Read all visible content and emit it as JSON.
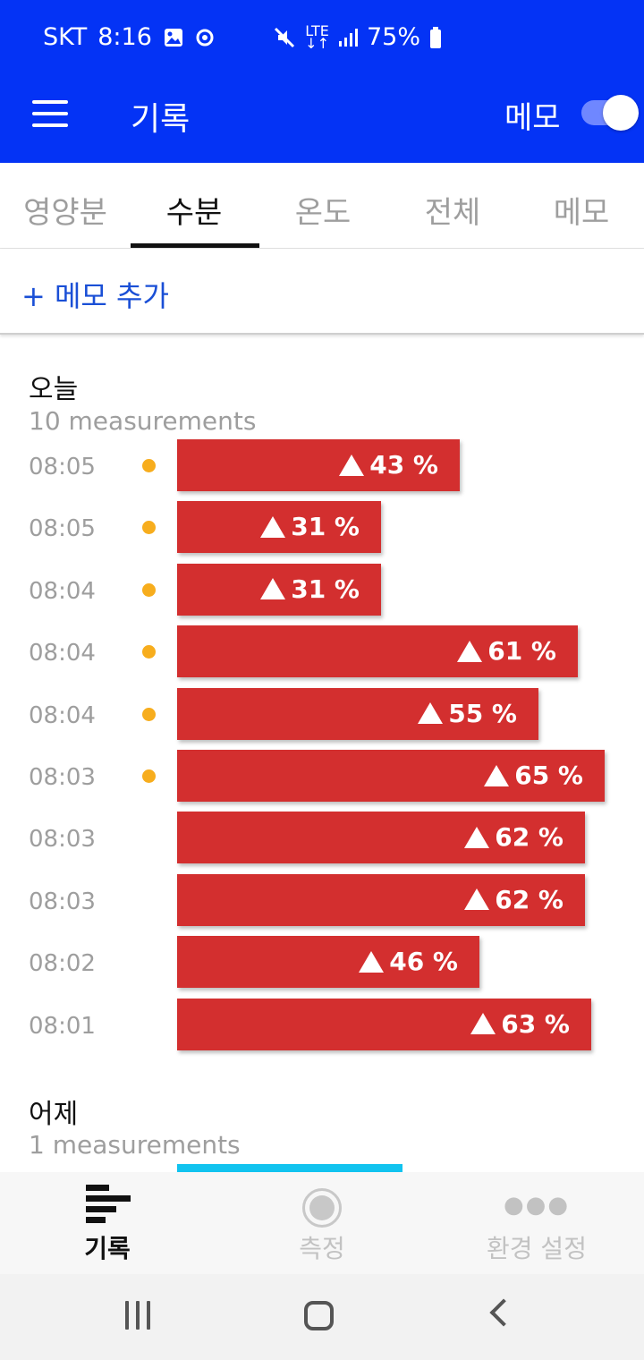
{
  "status_bar": {
    "carrier": "SKT",
    "time": "8:16",
    "icons": [
      "gallery-icon",
      "assistant-icon",
      "mute-icon",
      "lte-icon",
      "signal-icon",
      "battery-icon"
    ],
    "network": "LTE",
    "battery": "75%"
  },
  "app_bar": {
    "title": "기록",
    "memo_label": "메모",
    "memo_toggle_on": true
  },
  "tabs": [
    {
      "label": "영양분",
      "active": false
    },
    {
      "label": "수분",
      "active": true
    },
    {
      "label": "온도",
      "active": false
    },
    {
      "label": "전체",
      "active": false
    },
    {
      "label": "메모",
      "active": false
    }
  ],
  "add_memo_label": "+ 메모 추가",
  "sections": [
    {
      "header": "오늘",
      "count": "10 measurements",
      "measurements": [
        {
          "time": "08:05",
          "value": 43,
          "label": "43 %",
          "dot": true
        },
        {
          "time": "08:05",
          "value": 31,
          "label": "31 %",
          "dot": true
        },
        {
          "time": "08:04",
          "value": 31,
          "label": "31 %",
          "dot": true
        },
        {
          "time": "08:04",
          "value": 61,
          "label": "61 %",
          "dot": true
        },
        {
          "time": "08:04",
          "value": 55,
          "label": "55 %",
          "dot": true
        },
        {
          "time": "08:03",
          "value": 65,
          "label": "65 %",
          "dot": true
        },
        {
          "time": "08:03",
          "value": 62,
          "label": "62 %",
          "dot": false
        },
        {
          "time": "08:03",
          "value": 62,
          "label": "62 %",
          "dot": false
        },
        {
          "time": "08:02",
          "value": 46,
          "label": "46 %",
          "dot": false
        },
        {
          "time": "08:01",
          "value": 63,
          "label": "63 %",
          "dot": false
        }
      ]
    },
    {
      "header": "어제",
      "count": "1 measurements"
    }
  ],
  "colors": {
    "brand_blue": "#0433f5",
    "bar_red": "#d32f2f",
    "dot_orange": "#f7ad1d",
    "bar_cyan": "#11c3ef"
  },
  "bottom_nav": [
    {
      "label": "기록",
      "icon": "records-icon",
      "active": true
    },
    {
      "label": "측정",
      "icon": "measure-icon",
      "active": false
    },
    {
      "label": "환경 설정",
      "icon": "more-icon",
      "active": false
    }
  ]
}
